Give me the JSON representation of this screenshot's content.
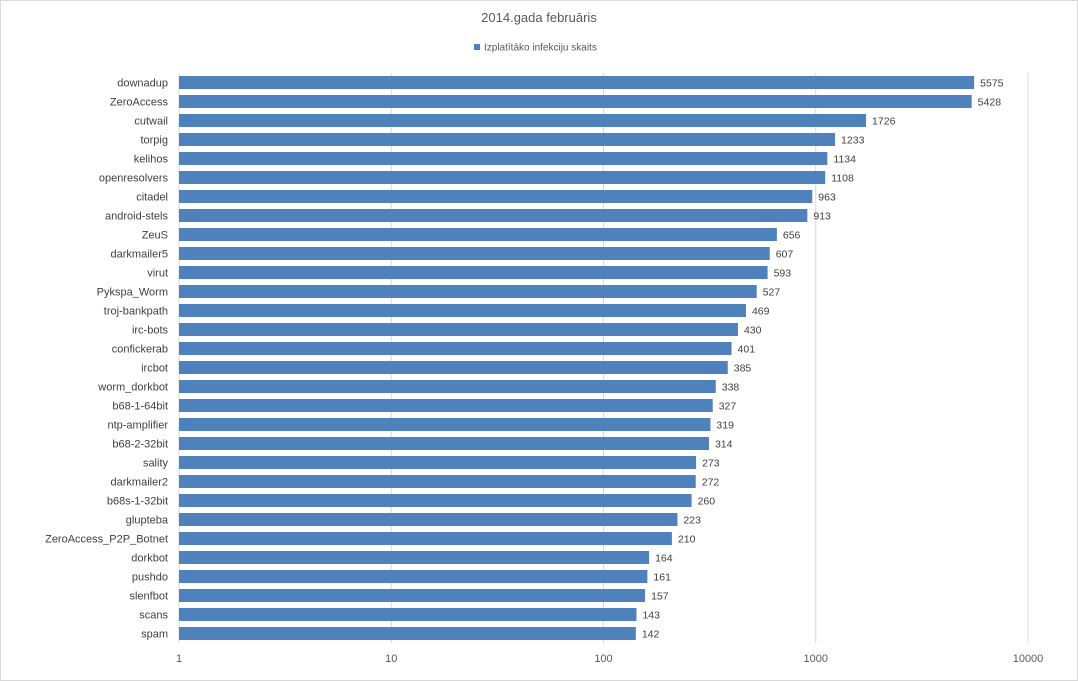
{
  "chart_data": {
    "type": "bar",
    "orientation": "horizontal",
    "title": "2014.gada februāris",
    "legend": {
      "position": "top",
      "entries": [
        "Izplatītāko infekciju skaits"
      ]
    },
    "series": [
      {
        "name": "Izplatītāko infekciju skaits",
        "color": "#4f81bd",
        "values": [
          5575,
          5428,
          1726,
          1233,
          1134,
          1108,
          963,
          913,
          656,
          607,
          593,
          527,
          469,
          430,
          401,
          385,
          338,
          327,
          319,
          314,
          273,
          272,
          260,
          223,
          210,
          164,
          161,
          157,
          143,
          142
        ]
      }
    ],
    "categories": [
      "downadup",
      "ZeroAccess",
      "cutwail",
      "torpig",
      "kelihos",
      "openresolvers",
      "citadel",
      "android-stels",
      "ZeuS",
      "darkmailer5",
      "virut",
      "Pykspa_Worm",
      "troj-bankpath",
      "irc-bots",
      "confickerab",
      "ircbot",
      "worm_dorkbot",
      "b68-1-64bit",
      "ntp-amplifier",
      "b68-2-32bit",
      "sality",
      "darkmailer2",
      "b68s-1-32bit",
      "glupteba",
      "ZeroAccess_P2P_Botnet",
      "dorkbot",
      "pushdo",
      "slenfbot",
      "scans",
      "spam"
    ],
    "x_axis": {
      "scale": "log",
      "range": [
        1,
        10000
      ],
      "ticks": [
        "1",
        "10",
        "100",
        "1000",
        "10000"
      ],
      "tick_values": [
        1,
        10,
        100,
        1000,
        10000
      ]
    },
    "grid": true,
    "xlabel": "",
    "ylabel": ""
  }
}
